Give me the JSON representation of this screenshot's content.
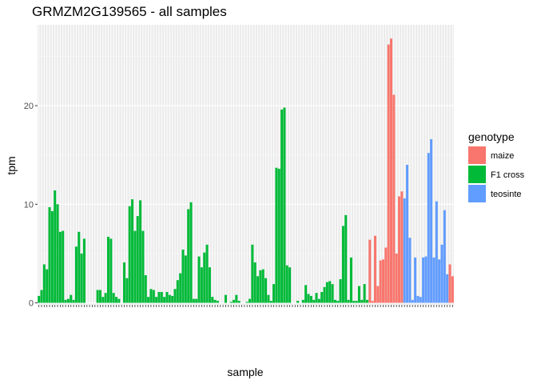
{
  "chart_data": {
    "type": "bar",
    "title": "GRMZM2G139565 - all samples",
    "xlabel": "sample",
    "ylabel": "tpm",
    "ylim": [
      -0.2,
      28.2
    ],
    "yticks": [
      0,
      10,
      20
    ],
    "grid": true,
    "legend": {
      "title": "genotype",
      "placement": "right",
      "entries": [
        {
          "name": "maize",
          "color": "#F8766D"
        },
        {
          "name": "F1 cross",
          "color": "#00BA38"
        },
        {
          "name": "teosinte",
          "color": "#619CFF"
        }
      ]
    },
    "series": [
      {
        "name": "F1 cross",
        "color": "#00BA38",
        "values": [
          0.7,
          1.3,
          3.9,
          3.4,
          9.7,
          9.3,
          11.4,
          10.0,
          7.2,
          7.3,
          0.3,
          0.4,
          0.8,
          0.3,
          5.7,
          7.2,
          5.0,
          6.5,
          0,
          0,
          0,
          0,
          1.3,
          1.3,
          0.6,
          1.0,
          6.7,
          6.5,
          1.0,
          0.6,
          0.4,
          0,
          4.1,
          2.5,
          9.8,
          10.5,
          7.3,
          8.8,
          10.4,
          7.3,
          2.8,
          0.6,
          1.4,
          1.3,
          0.6,
          1.1,
          1.1,
          0.6,
          1.1,
          0.8,
          0.7,
          1.4,
          2.3,
          3.0,
          5.4,
          4.8,
          9.5,
          10.2,
          0.4,
          0.4,
          4.7,
          3.6,
          5.1,
          5.9,
          3.6,
          0.6,
          0.3,
          0.2,
          0,
          0,
          0.8,
          0,
          0.1,
          0.3,
          0.8,
          0.2,
          0,
          0,
          0.1,
          0.4,
          5.9,
          4.1,
          2.7,
          3.3,
          3.4,
          2.5,
          0.8,
          0.2,
          1.9,
          13.7,
          13.6,
          19.6,
          19.8,
          3.8,
          3.6,
          0,
          0,
          0.2,
          0,
          0.3,
          1.8,
          0.9,
          0.7,
          0.3,
          1.0,
          0.4,
          1.1,
          1.6,
          2.1,
          2.2,
          1.9,
          0.3,
          0.2,
          2.4,
          7.8,
          8.9,
          0.3,
          4.6,
          0.2,
          0.2,
          1.7,
          0.3,
          1.9,
          0.3
        ]
      },
      {
        "name": "maize",
        "color": "#F8766D",
        "values": [
          6.4,
          0.2,
          6.8,
          1.7,
          4.3,
          4.4,
          5.6,
          26.2,
          26.8,
          21.1,
          5.0,
          10.8,
          11.3
        ]
      },
      {
        "name": "teosinte",
        "color": "#619CFF",
        "values": [
          10.6,
          14.0,
          6.6,
          0.3,
          4.6,
          0.7,
          0.6,
          4.6,
          4.7,
          15.2,
          16.6,
          4.6,
          10.3,
          4.4,
          5.9,
          9.4,
          2.9
        ]
      },
      {
        "name": "maize",
        "color": "#F8766D",
        "values": [
          3.9,
          2.7
        ]
      }
    ]
  }
}
